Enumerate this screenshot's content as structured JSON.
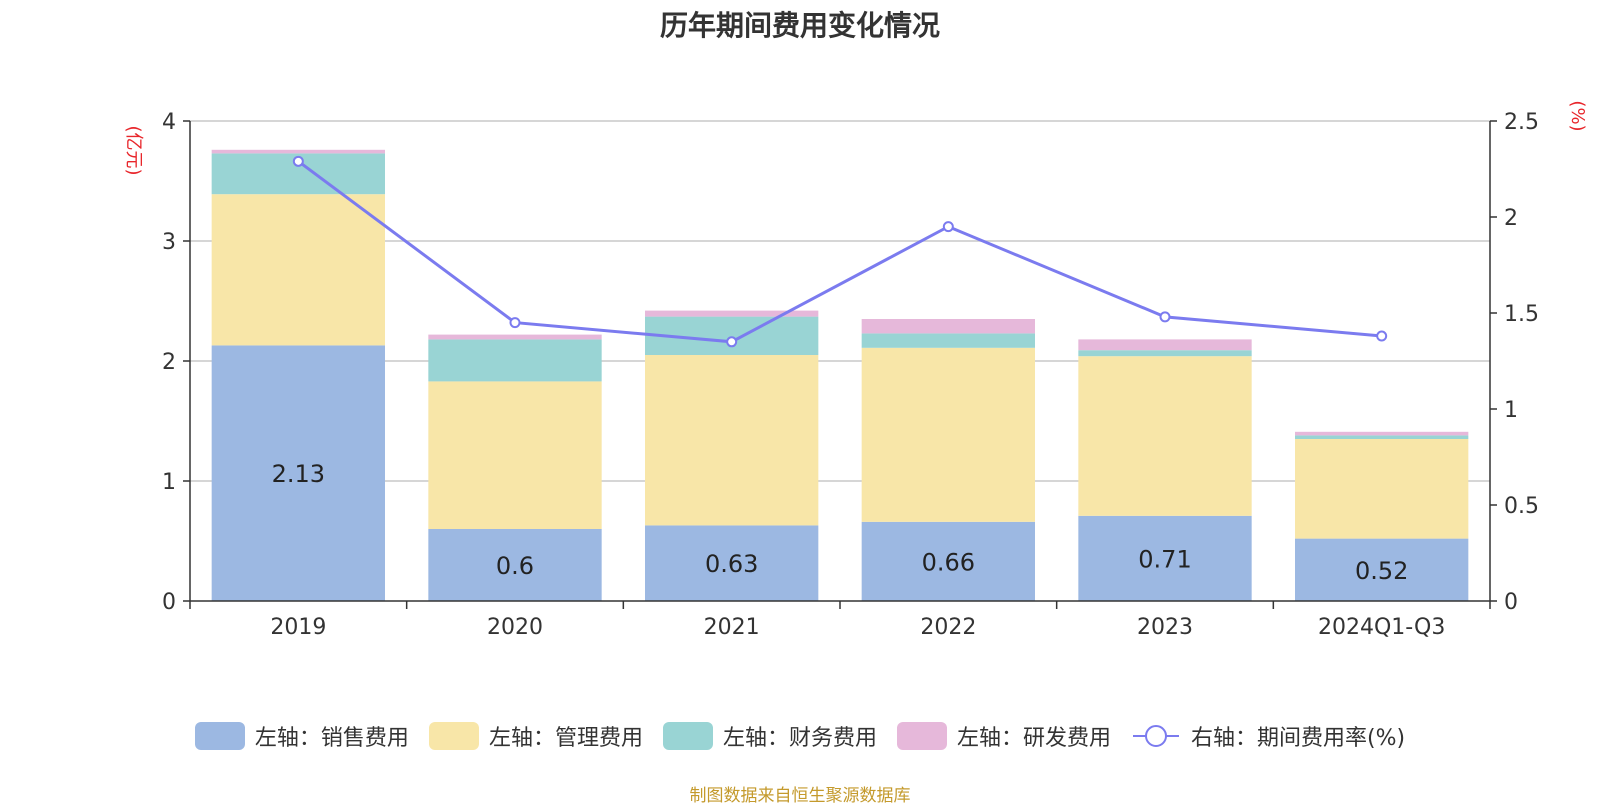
{
  "chart_data": {
    "type": "bar",
    "title": "历年期间费用变化情况",
    "categories": [
      "2019",
      "2020",
      "2021",
      "2022",
      "2023",
      "2024Q1-Q3"
    ],
    "series": [
      {
        "name": "左轴：销售费用",
        "axis": "left",
        "color": "#9cb8e2",
        "values": [
          2.13,
          0.6,
          0.63,
          0.66,
          0.71,
          0.52
        ]
      },
      {
        "name": "左轴：管理费用",
        "axis": "left",
        "color": "#f8e6a8",
        "values": [
          1.26,
          1.23,
          1.42,
          1.45,
          1.33,
          0.83
        ]
      },
      {
        "name": "左轴：财务费用",
        "axis": "left",
        "color": "#99d4d4",
        "values": [
          0.34,
          0.35,
          0.32,
          0.12,
          0.05,
          0.03
        ]
      },
      {
        "name": "左轴：研发费用",
        "axis": "left",
        "color": "#e6b8da",
        "values": [
          0.03,
          0.04,
          0.05,
          0.12,
          0.09,
          0.03
        ]
      },
      {
        "name": "右轴：期间费用率(%)",
        "axis": "right",
        "type": "line",
        "color": "#7b7bef",
        "values": [
          2.29,
          1.45,
          1.35,
          1.95,
          1.48,
          1.38
        ]
      }
    ],
    "data_labels": [
      "2.13",
      "0.6",
      "0.63",
      "0.66",
      "0.71",
      "0.52"
    ],
    "left_axis": {
      "label": "(亿元)",
      "ylim": [
        0,
        4
      ],
      "ticks": [
        "0",
        "1",
        "2",
        "3",
        "4"
      ]
    },
    "right_axis": {
      "label": "(%)",
      "ylim": [
        0,
        2.5
      ],
      "ticks": [
        "0",
        "0.5",
        "1",
        "1.5",
        "2",
        "2.5"
      ]
    },
    "legend_position": "bottom",
    "grid": true
  },
  "source": "制图数据来自恒生聚源数据库"
}
